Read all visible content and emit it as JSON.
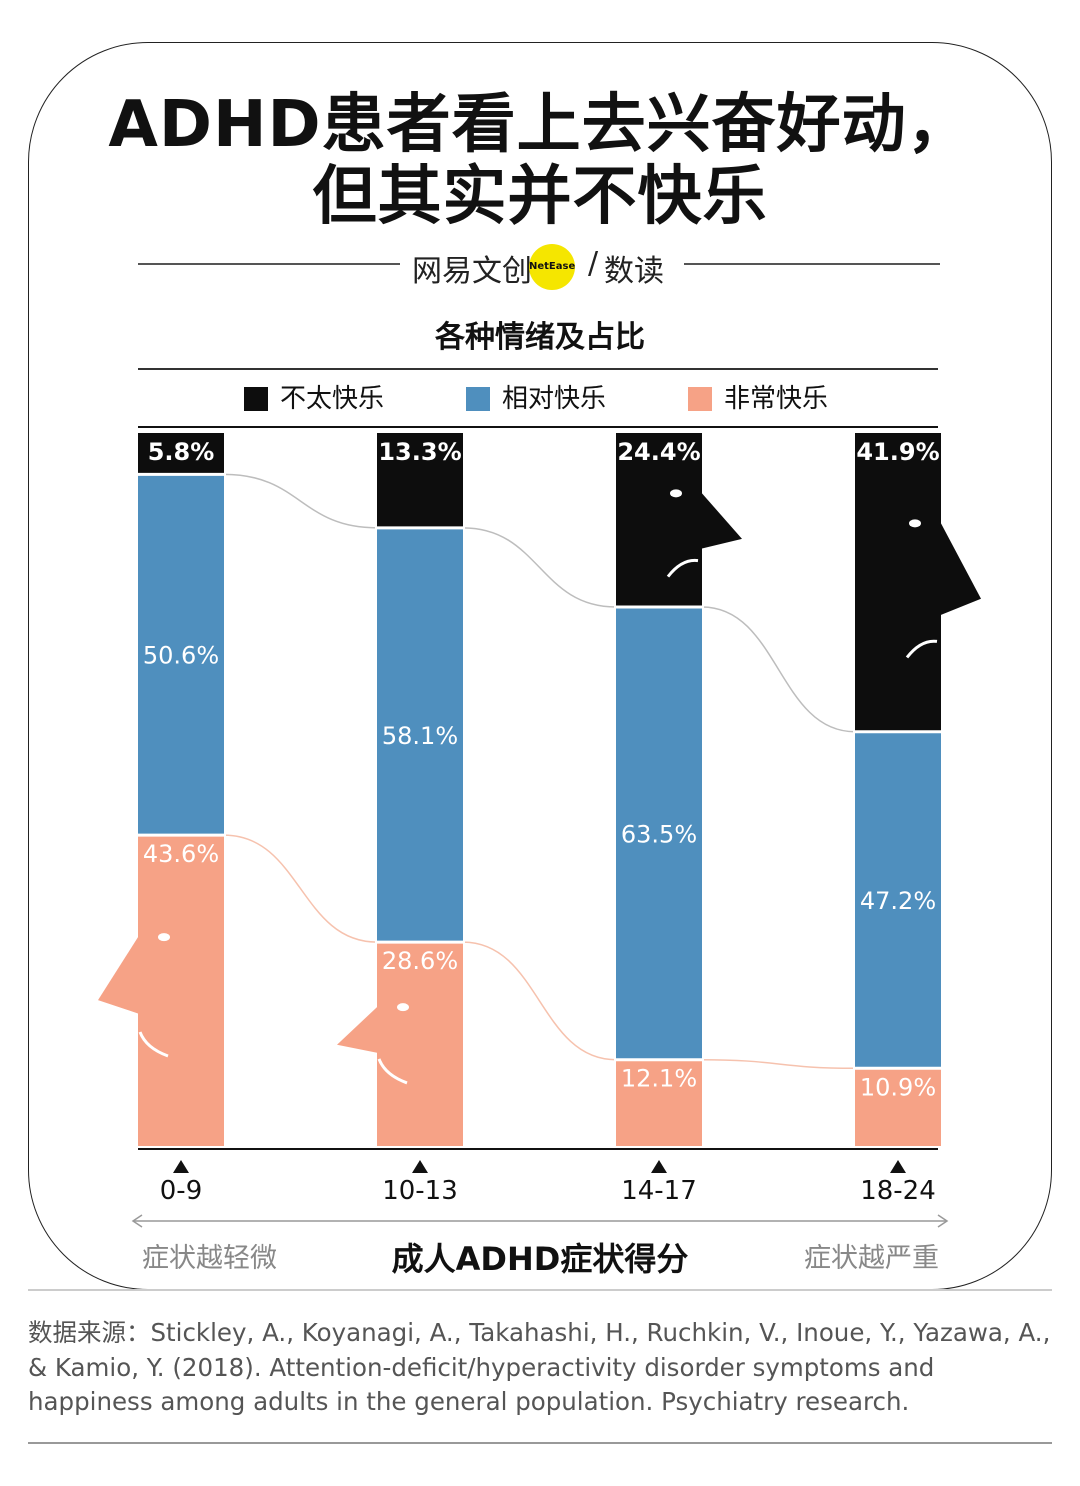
{
  "title": {
    "line1": "ADHD患者看上去兴奋好动，",
    "line2": "但其实并不快乐"
  },
  "brand": {
    "left": "网易文创",
    "dot": "NetEase",
    "slash": "/",
    "right": "数读"
  },
  "source_text": "数据来源：Stickley, A., Koyanagi, A., Takahashi, H., Ruchkin, V., Inoue, Y., Yazawa, A., & Kamio, Y. (2018). Attention-deficit/hyperactivity disorder symptoms and happiness among adults in the general population. Psychiatry research.",
  "axis_notes": {
    "left": "症状越轻微",
    "right": "症状越严重"
  },
  "chart_data": {
    "type": "bar",
    "stacked": true,
    "title": "各种情绪及占比",
    "xlabel": "成人ADHD症状得分",
    "ylabel": "",
    "categories": [
      "0-9",
      "10-13",
      "14-17",
      "18-24"
    ],
    "series": [
      {
        "name": "不太快乐",
        "color": "#0d0d0d",
        "values": [
          5.8,
          13.3,
          24.4,
          41.9
        ],
        "labels": [
          "5.8%",
          "13.3%",
          "24.4%",
          "41.9%"
        ]
      },
      {
        "name": "相对快乐",
        "color": "#4f8fbe",
        "values": [
          50.6,
          58.1,
          63.5,
          47.2
        ],
        "labels": [
          "50.6%",
          "58.1%",
          "63.5%",
          "47.2%"
        ]
      },
      {
        "name": "非常快乐",
        "color": "#f6a286",
        "values": [
          43.6,
          28.6,
          12.1,
          10.9
        ],
        "labels": [
          "43.6%",
          "28.6%",
          "12.1%",
          "10.9%"
        ]
      }
    ],
    "ylim": [
      0,
      100
    ],
    "legend_position": "top"
  }
}
